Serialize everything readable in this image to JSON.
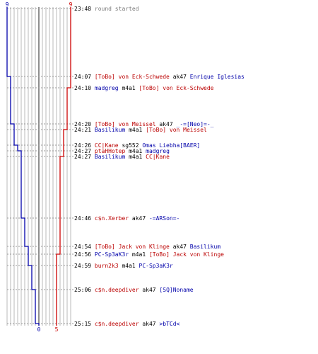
{
  "timeline": {
    "top_left_count": "9",
    "top_right_count": "9",
    "bottom_blue_count": "0",
    "bottom_red_count": "5",
    "colors": {
      "blue": "#0000aa",
      "red": "#cc0000",
      "grid": "#b8b8b8",
      "center": "#444444"
    },
    "blue_levels": [
      9,
      8,
      7,
      6,
      5,
      4,
      3,
      2,
      1,
      0
    ],
    "red_levels": [
      9,
      9,
      8,
      7,
      6,
      5,
      5,
      5,
      5,
      5
    ]
  },
  "events": [
    {
      "time": "23:48",
      "parts": [
        {
          "text": "round started",
          "c": "ev"
        }
      ]
    },
    {
      "time": "24:07",
      "parts": [
        {
          "text": "[ToBo] von Eck-Schwede",
          "c": "red"
        },
        {
          "text": " ak47 ",
          "c": "blk"
        },
        {
          "text": "Enrique Iglesias",
          "c": "blue"
        }
      ]
    },
    {
      "time": "24:10",
      "parts": [
        {
          "text": "madgreg",
          "c": "blue"
        },
        {
          "text": " m4a1 ",
          "c": "blk"
        },
        {
          "text": "[ToBo] von Eck-Schwede",
          "c": "red"
        }
      ]
    },
    {
      "time": "24:20",
      "parts": [
        {
          "text": "[ToBo] von Meissel",
          "c": "red"
        },
        {
          "text": " ak47 ",
          "c": "blk"
        },
        {
          "text": "_-=[Neo]=-_",
          "c": "blue"
        }
      ]
    },
    {
      "time": "24:21",
      "parts": [
        {
          "text": "Basilikum",
          "c": "blue"
        },
        {
          "text": " m4a1 ",
          "c": "blk"
        },
        {
          "text": "[ToBo] von Meissel",
          "c": "red"
        }
      ]
    },
    {
      "time": "24:26",
      "parts": [
        {
          "text": "CC|Kane",
          "c": "red"
        },
        {
          "text": " sg552 ",
          "c": "blk"
        },
        {
          "text": "Omas Liebha[BAER]",
          "c": "blue"
        }
      ]
    },
    {
      "time": "24:27",
      "parts": [
        {
          "text": "ptaHHotep",
          "c": "red"
        },
        {
          "text": " m4a1 ",
          "c": "blk"
        },
        {
          "text": "madgreg",
          "c": "blue"
        }
      ]
    },
    {
      "time": "24:27",
      "parts": [
        {
          "text": "Basilikum",
          "c": "blue"
        },
        {
          "text": " m4a1 ",
          "c": "blk"
        },
        {
          "text": "CC|Kane",
          "c": "red"
        }
      ]
    },
    {
      "time": "24:46",
      "parts": [
        {
          "text": "c$n.Xerber",
          "c": "red"
        },
        {
          "text": " ak47 ",
          "c": "blk"
        },
        {
          "text": "-=ARSon=-",
          "c": "blue"
        }
      ]
    },
    {
      "time": "24:54",
      "parts": [
        {
          "text": "[ToBo] Jack von Klinge",
          "c": "red"
        },
        {
          "text": " ak47 ",
          "c": "blk"
        },
        {
          "text": "Basilikum",
          "c": "blue"
        }
      ]
    },
    {
      "time": "24:56",
      "parts": [
        {
          "text": "PC-Sp3aK3r",
          "c": "blue"
        },
        {
          "text": " m4a1 ",
          "c": "blk"
        },
        {
          "text": "[ToBo] Jack von Klinge",
          "c": "red"
        }
      ]
    },
    {
      "time": "24:59",
      "parts": [
        {
          "text": "burn2k3",
          "c": "red"
        },
        {
          "text": " m4a1 ",
          "c": "blk"
        },
        {
          "text": "PC-Sp3aK3r",
          "c": "blue"
        }
      ]
    },
    {
      "time": "25:06",
      "parts": [
        {
          "text": "c$n.deepdiver",
          "c": "red"
        },
        {
          "text": " ak47 ",
          "c": "blk"
        },
        {
          "text": "[SQ]Noname",
          "c": "blue"
        }
      ]
    },
    {
      "time": "25:15",
      "parts": [
        {
          "text": "c$n.deepdiver",
          "c": "red"
        },
        {
          "text": " ak47 ",
          "c": "blk"
        },
        {
          "text": ">bTCd<",
          "c": "blue"
        }
      ]
    }
  ]
}
